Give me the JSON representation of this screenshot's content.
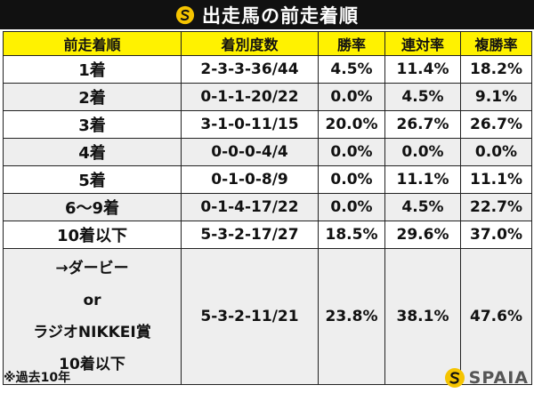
{
  "title": "出走馬の前走着順",
  "columns": [
    "前走着順",
    "着別度数",
    "勝率",
    "連対率",
    "複勝率"
  ],
  "rows": [
    {
      "label": "1着",
      "record": "2-3-3-36/44",
      "win": "4.5%",
      "quinella": "11.4%",
      "show": "18.2%"
    },
    {
      "label": "2着",
      "record": "0-1-1-20/22",
      "win": "0.0%",
      "quinella": "4.5%",
      "show": "9.1%"
    },
    {
      "label": "3着",
      "record": "3-1-0-11/15",
      "win": "20.0%",
      "quinella": "26.7%",
      "show": "26.7%"
    },
    {
      "label": "4着",
      "record": "0-0-0-4/4",
      "win": "0.0%",
      "quinella": "0.0%",
      "show": "0.0%"
    },
    {
      "label": "5着",
      "record": "0-1-0-8/9",
      "win": "0.0%",
      "quinella": "11.1%",
      "show": "11.1%"
    },
    {
      "label": "6〜9着",
      "record": "0-1-4-17/22",
      "win": "0.0%",
      "quinella": "4.5%",
      "show": "22.7%"
    },
    {
      "label": "10着以下",
      "record": "5-3-2-17/27",
      "win": "18.5%",
      "quinella": "29.6%",
      "show": "37.0%"
    }
  ],
  "special_row": {
    "label_lines": [
      "→ダービー",
      "or",
      "ラジオNIKKEI賞",
      "10着以下"
    ],
    "record": "5-3-2-11/21",
    "win": "23.8%",
    "quinella": "38.1%",
    "show": "47.6%"
  },
  "footnote": "※過去10年",
  "brand": "SPAIA",
  "colors": {
    "header_bg": "#fff200",
    "title_bg": "#111111",
    "alt_row": "#eeeeee",
    "logo": "#f5c400"
  }
}
